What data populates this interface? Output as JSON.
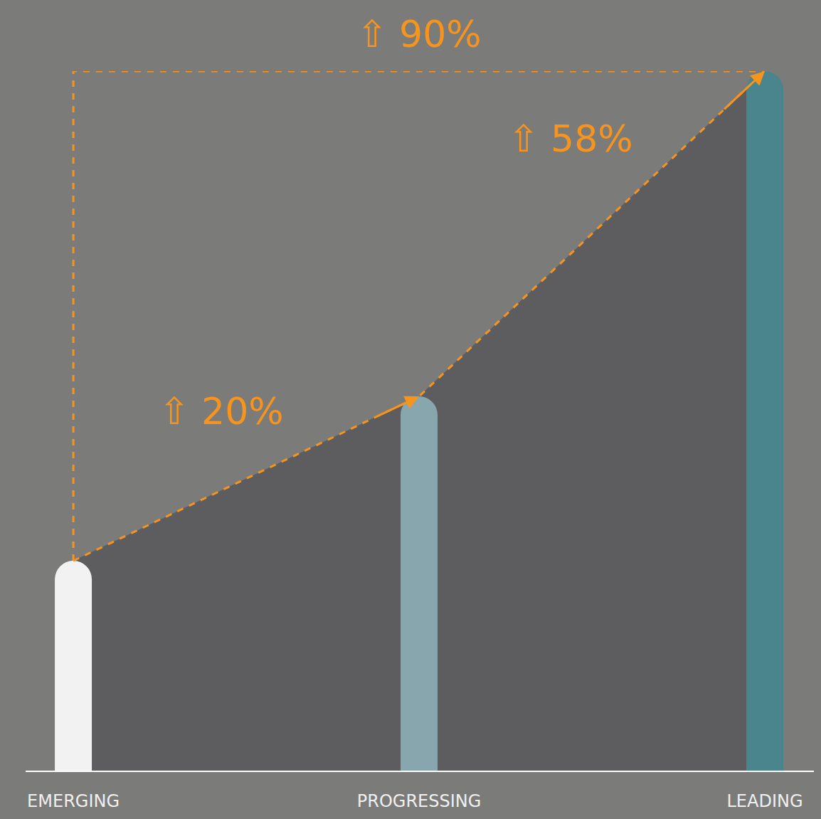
{
  "chart_data": {
    "type": "bar",
    "categories": [
      "EMERGING",
      "PROGRESSING",
      "LEADING"
    ],
    "values": [
      30,
      53.5,
      100
    ],
    "colors": [
      "#f2f2f2",
      "#87a6ad",
      "#4a858e"
    ],
    "ylim": [
      0,
      100
    ],
    "tick_labels": "x",
    "grid": false,
    "annotations": [
      "⇧ 20%",
      "⇧ 58%",
      "⇧ 90%"
    ]
  }
}
